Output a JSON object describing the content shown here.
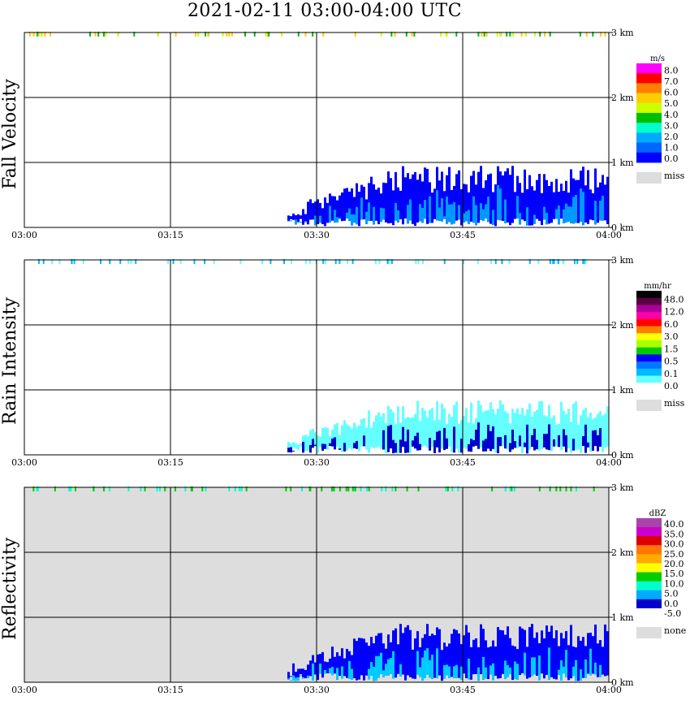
{
  "title": "2021-02-11   03:00-04:00 UTC",
  "x_tick_labels": [
    "03:00",
    "03:15",
    "03:30",
    "03:45",
    "04:00"
  ],
  "y_tick_labels": [
    "0 km",
    "1 km",
    "2 km",
    "3 km"
  ],
  "chart_data": [
    {
      "type": "heatmap",
      "name": "Fall Velocity",
      "legend_unit": "m/s",
      "legend_labels": [
        "8.0",
        "7.0",
        "6.0",
        "5.0",
        "4.0",
        "3.0",
        "2.0",
        "1.0",
        "0.0"
      ],
      "legend_colors": [
        "#ff00ff",
        "#ff0000",
        "#ff7f00",
        "#ffcc00",
        "#ccff00",
        "#00bf00",
        "#00ffcc",
        "#00aaff",
        "#0066ff",
        "#0000ff"
      ],
      "missing_label": "miss",
      "missing_color": "#dddddd",
      "background": "#ffffff",
      "x_range_minutes": [
        0,
        60
      ],
      "y_range_km": [
        0,
        3
      ],
      "echo_region": {
        "start_min": 27,
        "end_min": 60,
        "top_km": 0.95,
        "dominant_color": "#0000ff",
        "secondary_color": "#0099ff"
      },
      "clutter_band_km": 3.0,
      "clutter_colors": [
        "#ccff00",
        "#00bf00",
        "#ffcc00"
      ]
    },
    {
      "type": "heatmap",
      "name": "Rain Intensity",
      "legend_unit": "mm/hr",
      "legend_labels": [
        "48.0",
        "12.0",
        "6.0",
        "3.0",
        "1.5",
        "0.5",
        "0.1",
        "0.0"
      ],
      "legend_colors": [
        "#000000",
        "#5a0044",
        "#aa0099",
        "#ff00aa",
        "#ff0000",
        "#ff7f00",
        "#ffff00",
        "#aaff00",
        "#00cc00",
        "#0000ff",
        "#0077ff",
        "#00bbff",
        "#66ffff",
        "#ffffff"
      ],
      "missing_label": "miss",
      "missing_color": "#dddddd",
      "background": "#ffffff",
      "x_range_minutes": [
        0,
        60
      ],
      "y_range_km": [
        0,
        3
      ],
      "echo_region": {
        "start_min": 27,
        "end_min": 60,
        "top_km": 0.85,
        "dominant_color": "#66ffff",
        "secondary_color": "#0000cc"
      },
      "clutter_band_km": 3.0,
      "clutter_colors": [
        "#66ffff",
        "#00bbff"
      ]
    },
    {
      "type": "heatmap",
      "name": "Reflectivity",
      "legend_unit": "dBZ",
      "legend_labels": [
        "40.0",
        "35.0",
        "30.0",
        "25.0",
        "20.0",
        "15.0",
        "10.0",
        "5.0",
        "0.0",
        "-5.0"
      ],
      "legend_colors": [
        "#aa44aa",
        "#cc00cc",
        "#dd0000",
        "#ff7700",
        "#ffaa00",
        "#ffff00",
        "#00cc00",
        "#00ffcc",
        "#00aaff",
        "#0000cc",
        "#ffffff"
      ],
      "missing_label": "none",
      "missing_color": "#dddddd",
      "background": "#dddddd",
      "x_range_minutes": [
        0,
        60
      ],
      "y_range_km": [
        0,
        3
      ],
      "echo_region": {
        "start_min": 27,
        "end_min": 60,
        "top_km": 0.9,
        "dominant_color": "#0000ff",
        "secondary_color": "#00ccff"
      },
      "clutter_band_km": 3.0,
      "clutter_colors": [
        "#00ffcc",
        "#00cc00"
      ]
    }
  ]
}
